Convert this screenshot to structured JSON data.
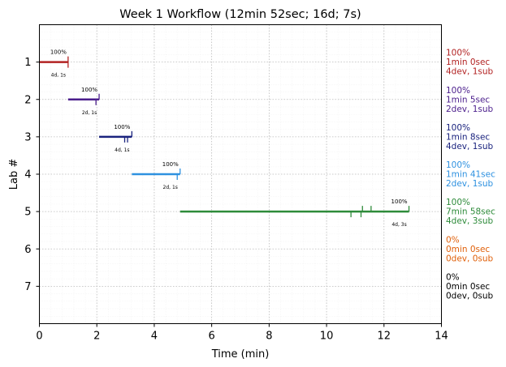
{
  "chart_data": {
    "type": "timeline",
    "title": "Week 1 Workflow (12min 52sec; 16d; 7s)",
    "xlabel": "Time (min)",
    "ylabel": "Lab #",
    "xlim": [
      0,
      14
    ],
    "ylim": [
      0,
      8
    ],
    "y_inverted": true,
    "grid": true,
    "x_ticks": [
      "0",
      "2",
      "4",
      "6",
      "8",
      "10",
      "12",
      "14"
    ],
    "y_ticks": [
      "1",
      "2",
      "3",
      "4",
      "5",
      "6",
      "7"
    ],
    "labs": [
      {
        "lab": 1,
        "color": "#b22222",
        "start": 0.0,
        "end": 1.0,
        "dev_marks": [
          1.0
        ],
        "sub_marks": [
          1.0
        ],
        "pct_label": "100%",
        "count_label": "4d, 1s",
        "summary": [
          "100%",
          "1min 0sec",
          "4dev, 1sub"
        ]
      },
      {
        "lab": 2,
        "color": "#4b1e8c",
        "start": 1.0,
        "end": 2.08,
        "dev_marks": [
          1.97
        ],
        "sub_marks": [
          2.08
        ],
        "pct_label": "100%",
        "count_label": "2d, 1s",
        "summary": [
          "100%",
          "1min 5sec",
          "2dev, 1sub"
        ]
      },
      {
        "lab": 3,
        "color": "#1a237e",
        "start": 2.08,
        "end": 3.22,
        "dev_marks": [
          2.97,
          3.07
        ],
        "sub_marks": [
          3.22
        ],
        "pct_label": "100%",
        "count_label": "4d, 1s",
        "summary": [
          "100%",
          "1min 8sec",
          "4dev, 1sub"
        ]
      },
      {
        "lab": 4,
        "color": "#2e91e0",
        "start": 3.22,
        "end": 4.9,
        "dev_marks": [
          4.8
        ],
        "sub_marks": [
          4.9
        ],
        "pct_label": "100%",
        "count_label": "2d, 1s",
        "summary": [
          "100%",
          "1min 41sec",
          "2dev, 1sub"
        ]
      },
      {
        "lab": 5,
        "color": "#2e8b3a",
        "start": 4.9,
        "end": 12.87,
        "dev_marks": [
          10.85,
          11.2
        ],
        "sub_marks": [
          11.25,
          11.55,
          12.87
        ],
        "pct_label": "100%",
        "count_label": "4d, 3s",
        "summary": [
          "100%",
          "7min 58sec",
          "4dev, 3sub"
        ]
      },
      {
        "lab": 6,
        "color": "#e0600a",
        "summary": [
          "0%",
          "0min 0sec",
          "0dev, 0sub"
        ]
      },
      {
        "lab": 7,
        "color": "#000000",
        "summary": [
          "0%",
          "0min 0sec",
          "0dev, 0sub"
        ]
      }
    ]
  }
}
